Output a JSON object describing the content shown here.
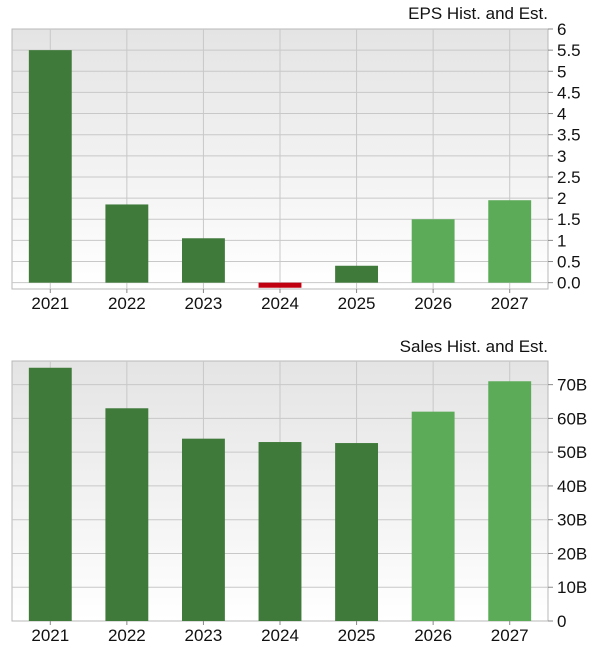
{
  "chart_data": [
    {
      "type": "bar",
      "title": "EPS Hist. and Est.",
      "categories": [
        "2021",
        "2022",
        "2023",
        "2024",
        "2025",
        "2026",
        "2027"
      ],
      "values": [
        5.5,
        1.85,
        1.05,
        -0.12,
        0.4,
        1.5,
        1.95
      ],
      "estimate": [
        false,
        false,
        false,
        false,
        false,
        true,
        true
      ],
      "ylim": [
        -0.15,
        6
      ],
      "yticks": [
        "6",
        "5.5",
        "5",
        "4.5",
        "4",
        "3.5",
        "3",
        "2.5",
        "2",
        "1.5",
        "1",
        "0.5",
        "0.0"
      ],
      "ytick_values": [
        6,
        5.5,
        5,
        4.5,
        4,
        3.5,
        3,
        2.5,
        2,
        1.5,
        1,
        0.5,
        0
      ],
      "grid": true,
      "colors": {
        "historical": "#3f7a3a",
        "estimate": "#5cab58",
        "negative": "#c00010"
      }
    },
    {
      "type": "bar",
      "title": "Sales Hist. and Est.",
      "categories": [
        "2021",
        "2022",
        "2023",
        "2024",
        "2025",
        "2026",
        "2027"
      ],
      "values": [
        75,
        63,
        54,
        53,
        52.7,
        62,
        71
      ],
      "estimate": [
        false,
        false,
        false,
        false,
        false,
        true,
        true
      ],
      "ylim": [
        0,
        77
      ],
      "yticks": [
        "70B",
        "60B",
        "50B",
        "40B",
        "30B",
        "20B",
        "10B",
        "0"
      ],
      "ytick_values": [
        70,
        60,
        50,
        40,
        30,
        20,
        10,
        0
      ],
      "grid": true,
      "colors": {
        "historical": "#3f7a3a",
        "estimate": "#5cab58",
        "negative": "#c00010"
      }
    }
  ]
}
